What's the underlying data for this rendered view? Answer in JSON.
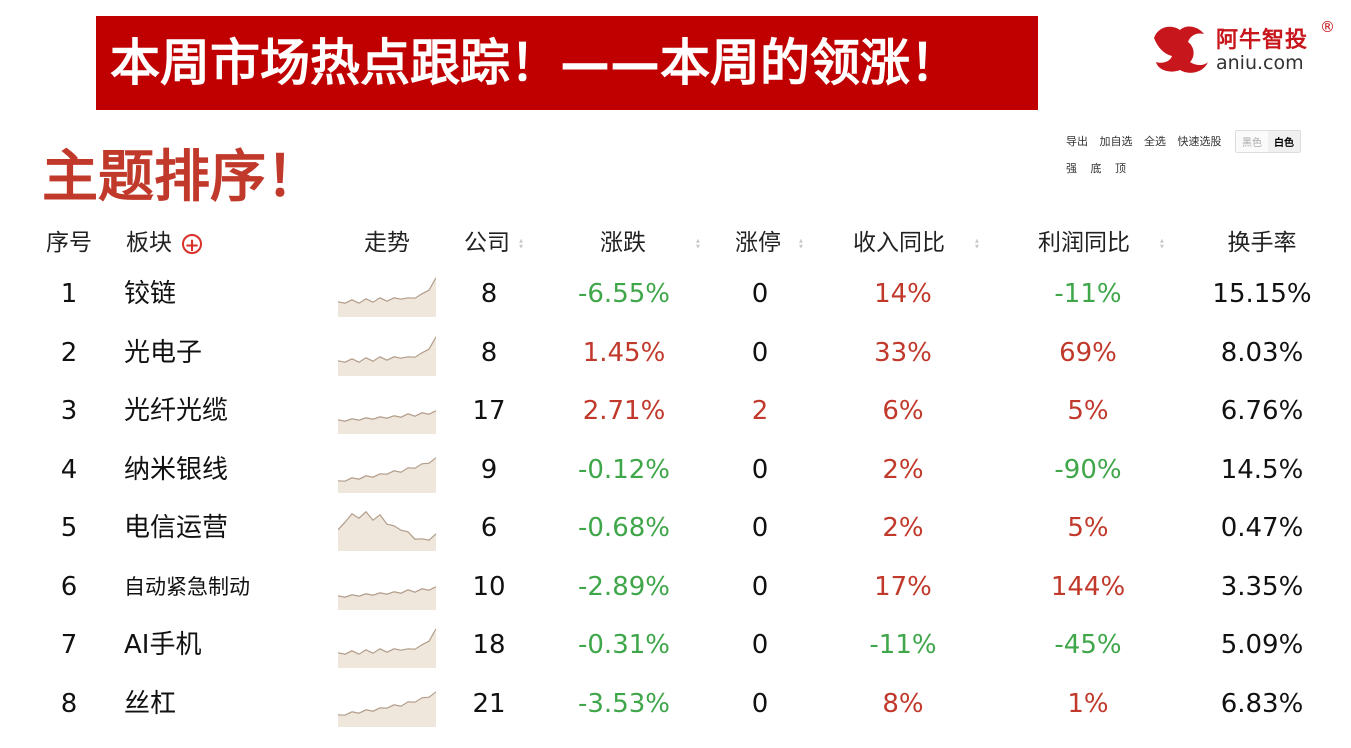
{
  "banner": {
    "title": "本周市场热点跟踪！——本周的领涨！"
  },
  "logo": {
    "name": "阿牛智投",
    "reg_mark": "®",
    "url": "aniu.com"
  },
  "section": {
    "title": "主题排序！"
  },
  "toolbar": {
    "export": "导出",
    "add_watch": "加自选",
    "select_all": "全选",
    "quick_pick": "快速选股",
    "theme_black": "黑色",
    "theme_white": "白色",
    "filters": [
      "强",
      "底",
      "顶"
    ]
  },
  "table": {
    "headers": {
      "index": "序号",
      "sector": "板块",
      "trend": "走势",
      "companies": "公司",
      "change": "涨跌",
      "limit_up": "涨停",
      "revenue_yoy": "收入同比",
      "profit_yoy": "利润同比",
      "turnover": "换手率"
    },
    "colors": {
      "up": "#c0392b",
      "down": "#3fa64a",
      "neutral": "#111111"
    },
    "rows": [
      {
        "index": "1",
        "sector": "铰链",
        "companies": "8",
        "change": "-6.55%",
        "limit_up": "0",
        "revenue_yoy": "14%",
        "profit_yoy": "-11%",
        "turnover": "15.15%",
        "trend_shape": "rise-late"
      },
      {
        "index": "2",
        "sector": "光电子",
        "companies": "8",
        "change": "1.45%",
        "limit_up": "0",
        "revenue_yoy": "33%",
        "profit_yoy": "69%",
        "turnover": "8.03%",
        "trend_shape": "rise-late"
      },
      {
        "index": "3",
        "sector": "光纤光缆",
        "companies": "17",
        "change": "2.71%",
        "limit_up": "2",
        "revenue_yoy": "6%",
        "profit_yoy": "5%",
        "turnover": "6.76%",
        "trend_shape": "gentle-rise"
      },
      {
        "index": "4",
        "sector": "纳米银线",
        "companies": "9",
        "change": "-0.12%",
        "limit_up": "0",
        "revenue_yoy": "2%",
        "profit_yoy": "-90%",
        "turnover": "14.5%",
        "trend_shape": "steady-rise"
      },
      {
        "index": "5",
        "sector": "电信运营",
        "companies": "6",
        "change": "-0.68%",
        "limit_up": "0",
        "revenue_yoy": "2%",
        "profit_yoy": "5%",
        "turnover": "0.47%",
        "trend_shape": "peak-drop"
      },
      {
        "index": "6",
        "sector": "自动紧急制动",
        "companies": "10",
        "change": "-2.89%",
        "limit_up": "0",
        "revenue_yoy": "17%",
        "profit_yoy": "144%",
        "turnover": "3.35%",
        "trend_shape": "gentle-rise"
      },
      {
        "index": "7",
        "sector": "AI手机",
        "companies": "18",
        "change": "-0.31%",
        "limit_up": "0",
        "revenue_yoy": "-11%",
        "profit_yoy": "-45%",
        "turnover": "5.09%",
        "trend_shape": "rise-late"
      },
      {
        "index": "8",
        "sector": "丝杠",
        "companies": "21",
        "change": "-3.53%",
        "limit_up": "0",
        "revenue_yoy": "8%",
        "profit_yoy": "1%",
        "turnover": "6.83%",
        "trend_shape": "steady-rise"
      }
    ]
  }
}
